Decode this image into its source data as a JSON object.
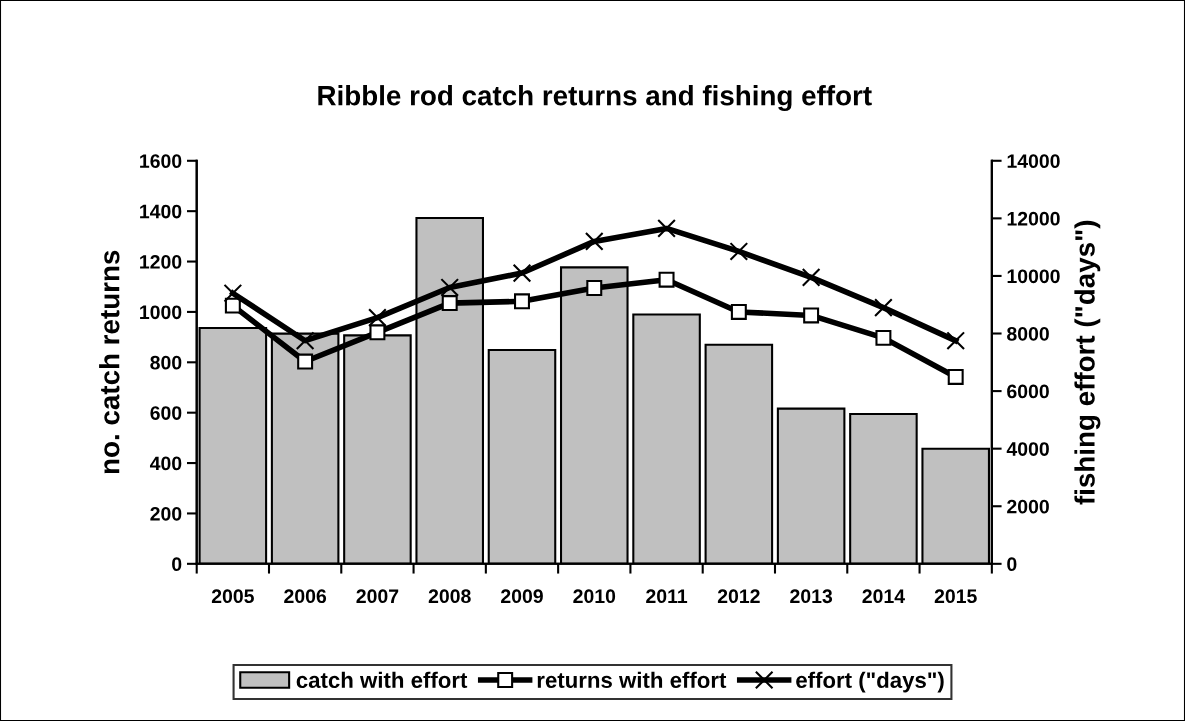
{
  "chart_data": {
    "type": "bar",
    "title": "Ribble rod catch returns and fishing effort",
    "categories": [
      "2005",
      "2006",
      "2007",
      "2008",
      "2009",
      "2010",
      "2011",
      "2012",
      "2013",
      "2014",
      "2015"
    ],
    "ylabel": "no. catch returns",
    "y2label": "fishing effort (\"days\")",
    "series": [
      {
        "name": "catch with effort",
        "color": "#c0c0c0",
        "values": [
          936,
          914,
          907,
          1373,
          849,
          1177,
          990,
          870,
          616,
          595,
          457
        ]
      },
      {
        "name": "returns with effort",
        "type": "line",
        "color": "#000000",
        "marker": "square",
        "values": [
          1025,
          803,
          919,
          1035,
          1042,
          1095,
          1128,
          1000,
          986,
          897,
          742
        ]
      },
      {
        "name": "effort (\"days\")",
        "type": "line",
        "color": "#000000",
        "marker": "cross",
        "axis": "y2",
        "values": [
          9400,
          7750,
          8550,
          9600,
          10100,
          11200,
          11650,
          10850,
          9950,
          8900,
          7750
        ]
      }
    ],
    "ylim": [
      0,
      1600
    ],
    "yticks": [
      0,
      200,
      400,
      600,
      800,
      1000,
      1200,
      1400,
      1600
    ],
    "y2lim": [
      0,
      14000
    ],
    "y2ticks": [
      0,
      2000,
      4000,
      6000,
      8000,
      10000,
      12000,
      14000
    ],
    "legend": "bottom",
    "grid": false
  }
}
